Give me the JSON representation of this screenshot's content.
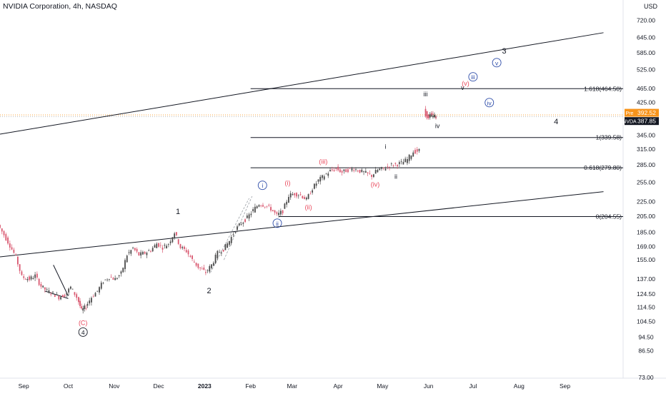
{
  "header": {
    "title": "NVIDIA Corporation, 4h, NASDAQ",
    "currency": "USD"
  },
  "colors": {
    "up": "#4a4a4a",
    "down": "#d9576f",
    "fib": "#131722",
    "wave_red": "#e8465a",
    "wave_blue": "#2c4ba8",
    "wave_black": "#131722",
    "price_tag": "#f7931a",
    "nvda_tag": "#131722"
  },
  "chart_data": {
    "type": "candlestick",
    "y_scale": "log",
    "ylim": [
      70,
      820
    ],
    "x_ticks": [
      {
        "label": "Sep",
        "date": "2022-09-01"
      },
      {
        "label": "Oct",
        "date": "2022-10-01"
      },
      {
        "label": "Nov",
        "date": "2022-11-01"
      },
      {
        "label": "Dec",
        "date": "2022-12-01"
      },
      {
        "label": "2023",
        "date": "2023-01-01"
      },
      {
        "label": "Feb",
        "date": "2023-02-01"
      },
      {
        "label": "Mar",
        "date": "2023-03-01"
      },
      {
        "label": "Apr",
        "date": "2023-04-01"
      },
      {
        "label": "May",
        "date": "2023-05-01"
      },
      {
        "label": "Jun",
        "date": "2023-06-01"
      },
      {
        "label": "Jul",
        "date": "2023-07-01"
      },
      {
        "label": "Aug",
        "date": "2023-08-01"
      },
      {
        "label": "Sep",
        "date": "2023-09-01"
      }
    ],
    "y_ticks": [
      "720.00",
      "645.00",
      "585.00",
      "525.00",
      "465.00",
      "425.00",
      "345.00",
      "315.00",
      "285.00",
      "255.00",
      "225.00",
      "205.00",
      "185.00",
      "169.00",
      "155.00",
      "137.00",
      "124.50",
      "114.50",
      "104.50",
      "94.50",
      "86.50",
      "73.00"
    ],
    "price_path": [
      [
        "2022-08-16",
        194
      ],
      [
        "2022-08-20",
        182
      ],
      [
        "2022-08-24",
        170
      ],
      [
        "2022-08-28",
        158
      ],
      [
        "2022-09-01",
        139
      ],
      [
        "2022-09-06",
        137
      ],
      [
        "2022-09-10",
        140
      ],
      [
        "2022-09-14",
        131
      ],
      [
        "2022-09-18",
        127
      ],
      [
        "2022-09-22",
        125
      ],
      [
        "2022-09-26",
        122
      ],
      [
        "2022-09-30",
        124
      ],
      [
        "2022-10-04",
        130
      ],
      [
        "2022-10-08",
        122
      ],
      [
        "2022-10-11",
        112
      ],
      [
        "2022-10-14",
        115
      ],
      [
        "2022-10-18",
        122
      ],
      [
        "2022-10-22",
        127
      ],
      [
        "2022-10-26",
        135
      ],
      [
        "2022-10-30",
        139
      ],
      [
        "2022-11-03",
        137
      ],
      [
        "2022-11-07",
        142
      ],
      [
        "2022-11-11",
        160
      ],
      [
        "2022-11-15",
        167
      ],
      [
        "2022-11-19",
        160
      ],
      [
        "2022-11-23",
        162
      ],
      [
        "2022-11-27",
        165
      ],
      [
        "2022-12-01",
        172
      ],
      [
        "2022-12-05",
        168
      ],
      [
        "2022-12-09",
        172
      ],
      [
        "2022-12-13",
        185
      ],
      [
        "2022-12-17",
        168
      ],
      [
        "2022-12-21",
        164
      ],
      [
        "2022-12-25",
        155
      ],
      [
        "2022-12-29",
        148
      ],
      [
        "2023-01-03",
        143
      ],
      [
        "2023-01-07",
        150
      ],
      [
        "2023-01-11",
        162
      ],
      [
        "2023-01-15",
        166
      ],
      [
        "2023-01-19",
        175
      ],
      [
        "2023-01-23",
        188
      ],
      [
        "2023-01-27",
        196
      ],
      [
        "2023-01-31",
        203
      ],
      [
        "2023-02-04",
        213
      ],
      [
        "2023-02-08",
        222
      ],
      [
        "2023-02-12",
        220
      ],
      [
        "2023-02-16",
        215
      ],
      [
        "2023-02-20",
        206
      ],
      [
        "2023-02-24",
        212
      ],
      [
        "2023-02-28",
        234
      ],
      [
        "2023-03-04",
        237
      ],
      [
        "2023-03-08",
        235
      ],
      [
        "2023-03-12",
        228
      ],
      [
        "2023-03-16",
        245
      ],
      [
        "2023-03-20",
        258
      ],
      [
        "2023-03-24",
        266
      ],
      [
        "2023-03-28",
        274
      ],
      [
        "2023-04-01",
        278
      ],
      [
        "2023-04-05",
        272
      ],
      [
        "2023-04-09",
        276
      ],
      [
        "2023-04-13",
        278
      ],
      [
        "2023-04-17",
        274
      ],
      [
        "2023-04-21",
        270
      ],
      [
        "2023-04-25",
        266
      ],
      [
        "2023-04-29",
        276
      ],
      [
        "2023-05-03",
        278
      ],
      [
        "2023-05-07",
        284
      ],
      [
        "2023-05-11",
        286
      ],
      [
        "2023-05-15",
        288
      ],
      [
        "2023-05-19",
        295
      ],
      [
        "2023-05-23",
        310
      ],
      [
        "2023-05-27",
        312
      ],
      [
        "2023-05-30",
        402
      ],
      [
        "2023-06-02",
        390
      ],
      [
        "2023-06-05",
        392
      ],
      [
        "2023-06-07",
        388
      ]
    ],
    "fib_levels": [
      {
        "label": "1.618(464.50)",
        "value": 464.5
      },
      {
        "label": "1(339.58)",
        "value": 339.58
      },
      {
        "label": "0.618(279.80)",
        "value": 279.8
      },
      {
        "label": "0(204.55)",
        "value": 204.55
      }
    ],
    "current_price": {
      "label": "Pre",
      "value": "392.52"
    },
    "symbol_price": {
      "label": "NVDA",
      "value": "387.85"
    },
    "channel_lines": [
      {
        "name": "upper",
        "from": [
          "2022-08-16",
          347
        ],
        "to": [
          "2023-09-27",
          665
        ]
      },
      {
        "name": "lower",
        "from": [
          "2022-08-16",
          158
        ],
        "to": [
          "2023-09-27",
          240
        ]
      }
    ],
    "trend_lines": [
      {
        "name": "wedge-top",
        "from": [
          "2022-09-21",
          150
        ],
        "to": [
          "2022-10-01",
          123
        ]
      },
      {
        "name": "wedge-bottom",
        "from": [
          "2022-09-15",
          127
        ],
        "to": [
          "2022-10-01",
          121
        ]
      }
    ],
    "dashed_lines": [
      {
        "from": [
          "2023-01-05",
          143
        ],
        "to": [
          "2023-01-31",
          230
        ]
      },
      {
        "from": [
          "2023-01-14",
          155
        ],
        "to": [
          "2023-02-02",
          233
        ]
      }
    ],
    "wave_labels": [
      {
        "text": "(C)",
        "color": "red",
        "at": [
          "2022-10-11",
          102
        ]
      },
      {
        "text": "4",
        "color": "black",
        "circle": true,
        "at": [
          "2022-10-11",
          96
        ]
      },
      {
        "text": "1",
        "color": "black",
        "at": [
          "2022-12-14",
          208
        ]
      },
      {
        "text": "2",
        "color": "black",
        "at": [
          "2023-01-04",
          125
        ]
      },
      {
        "text": "i",
        "color": "blue",
        "circle": true,
        "at": [
          "2023-02-09",
          246
        ]
      },
      {
        "text": "ii",
        "color": "blue",
        "circle": true,
        "at": [
          "2023-02-19",
          193
        ]
      },
      {
        "text": "(i)",
        "color": "red",
        "at": [
          "2023-02-26",
          250
        ]
      },
      {
        "text": "(ii)",
        "color": "red",
        "at": [
          "2023-03-12",
          214
        ]
      },
      {
        "text": "(iii)",
        "color": "red",
        "at": [
          "2023-03-22",
          287
        ]
      },
      {
        "text": "(iv)",
        "color": "red",
        "at": [
          "2023-04-26",
          248
        ]
      },
      {
        "text": "i",
        "color": "black",
        "at": [
          "2023-05-03",
          316
        ]
      },
      {
        "text": "ii",
        "color": "black",
        "at": [
          "2023-05-10",
          261
        ]
      },
      {
        "text": "iii",
        "color": "black",
        "at": [
          "2023-05-30",
          442
        ]
      },
      {
        "text": "iv",
        "color": "black",
        "at": [
          "2023-06-07",
          361
        ]
      },
      {
        "text": "v",
        "color": "black",
        "at": [
          "2023-06-24",
          461
        ]
      },
      {
        "text": "(v)",
        "color": "red",
        "at": [
          "2023-06-26",
          474
        ]
      },
      {
        "text": "iii",
        "color": "blue",
        "circle": true,
        "at": [
          "2023-07-01",
          493
        ]
      },
      {
        "text": "iv",
        "color": "blue",
        "circle": true,
        "at": [
          "2023-07-12",
          418
        ]
      },
      {
        "text": "v",
        "color": "blue",
        "circle": true,
        "at": [
          "2023-07-17",
          540
        ]
      },
      {
        "text": "3",
        "color": "black",
        "at": [
          "2023-07-22",
          582
        ]
      },
      {
        "text": "4",
        "color": "black",
        "at": [
          "2023-08-26",
          370
        ]
      }
    ]
  }
}
